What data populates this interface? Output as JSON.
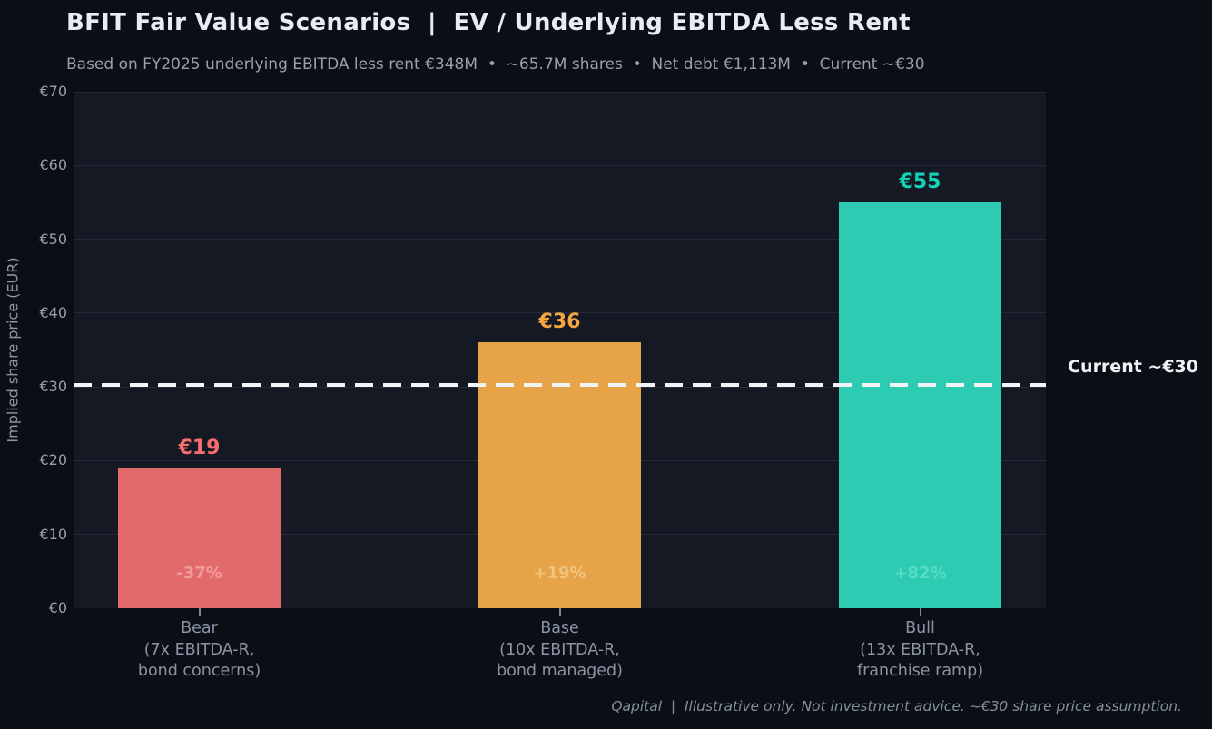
{
  "header": {
    "title": "BFIT Fair Value Scenarios  |  EV / Underlying EBITDA Less Rent",
    "subtitle": "Based on FY2025 underlying EBITDA less rent €348M  •  ~65.7M shares  •  Net debt €1,113M  •  Current ~€30"
  },
  "y_axis": {
    "title": "Implied share price (EUR)",
    "tick_labels": [
      "€0",
      "€10",
      "€20",
      "€30",
      "€40",
      "€50",
      "€60",
      "€70"
    ],
    "min": 0,
    "max": 70,
    "step": 10
  },
  "current_line": {
    "label": "Current ~€30",
    "value": 30.3,
    "color": "#f3f4f7"
  },
  "footer": "Qapital  |  Illustrative only. Not investment advice. ~€30 share price assumption.",
  "chart_data": {
    "type": "bar",
    "title": "BFIT Fair Value Scenarios | EV / Underlying EBITDA Less Rent",
    "subtitle": "Based on FY2025 underlying EBITDA less rent €348M • ~65.7M shares • Net debt €1,113M • Current ~€30",
    "xlabel": "",
    "ylabel": "Implied share price (EUR)",
    "ylim": [
      0,
      70
    ],
    "grid": true,
    "legend": false,
    "categories": [
      "Bear\n(7x EBITDA-R,\nbond concerns)",
      "Base\n(10x EBITDA-R,\nbond managed)",
      "Bull\n(13x EBITDA-R,\nfranchise ramp)"
    ],
    "values": [
      19,
      36,
      55
    ],
    "value_labels": [
      "€19",
      "€36",
      "€55"
    ],
    "pct_vs_current_labels": [
      "-37%",
      "+19%",
      "+82%"
    ],
    "bar_colors": [
      "#e26a6a",
      "#e6a347",
      "#2dcbb1"
    ],
    "reference_line": {
      "y": 30.3,
      "label": "Current ~€30"
    }
  },
  "bars": [
    {
      "key": "bear",
      "value": 19,
      "value_label": "€19",
      "pct_label": "-37%",
      "label_lines": [
        "Bear",
        "(7x EBITDA-R,",
        "bond concerns)"
      ],
      "color": "#e26a6a",
      "value_color": "#fa6d6d",
      "pct_color": "#f29c9c"
    },
    {
      "key": "base",
      "value": 36,
      "value_label": "€36",
      "pct_label": "+19%",
      "label_lines": [
        "Base",
        "(10x EBITDA-R,",
        "bond managed)"
      ],
      "color": "#e6a347",
      "value_color": "#f4a53e",
      "pct_color": "#f0c47c"
    },
    {
      "key": "bull",
      "value": 55,
      "value_label": "€55",
      "pct_label": "+82%",
      "label_lines": [
        "Bull",
        "(13x EBITDA-R,",
        "franchise ramp)"
      ],
      "color": "#2dcbb1",
      "value_color": "#12d3b5",
      "pct_color": "#58dcc6"
    }
  ]
}
